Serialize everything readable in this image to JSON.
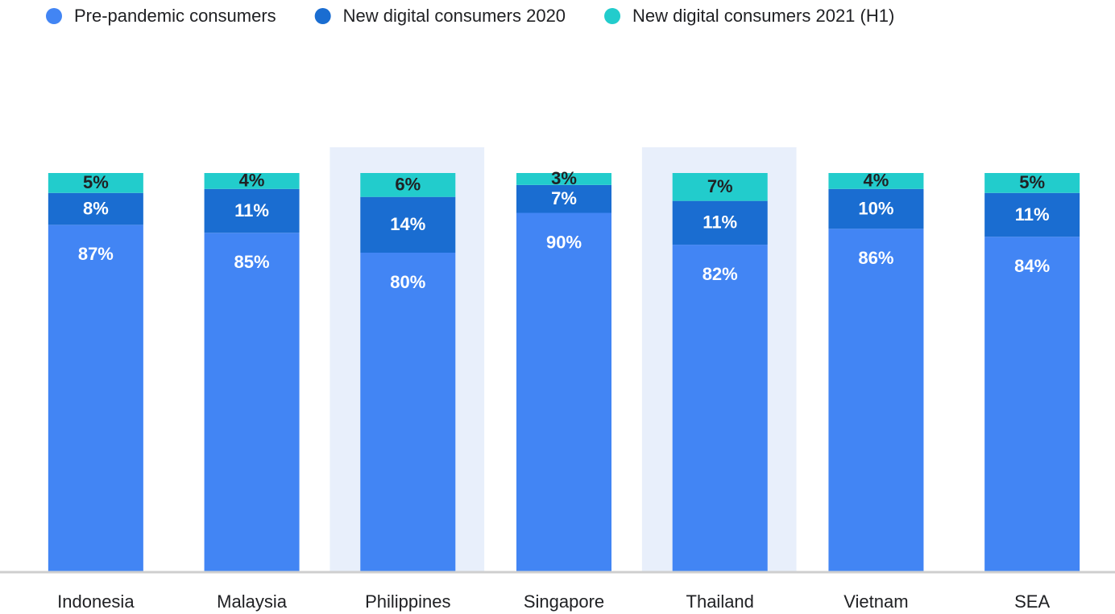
{
  "chart_data": {
    "type": "stacked_bar",
    "categories": [
      "Indonesia",
      "Malaysia",
      "Philippines",
      "Singapore",
      "Thailand",
      "Vietnam",
      "SEA"
    ],
    "series": [
      {
        "name": "Pre-pandemic consumers",
        "color": "#4285f4",
        "label_color": "#ffffff",
        "values": [
          87,
          85,
          80,
          90,
          82,
          86,
          84
        ],
        "value_labels": [
          "87%",
          "85%",
          "80%",
          "90%",
          "82%",
          "86%",
          "84%"
        ]
      },
      {
        "name": "New digital consumers 2020",
        "color": "#1a6dd1",
        "label_color": "#ffffff",
        "values": [
          8,
          11,
          14,
          7,
          11,
          10,
          11
        ],
        "value_labels": [
          "8%",
          "11%",
          "14%",
          "7%",
          "11%",
          "10%",
          "11%"
        ]
      },
      {
        "name": "New digital consumers 2021 (H1)",
        "color": "#22cccc",
        "label_color": "#202124",
        "values": [
          5,
          4,
          6,
          3,
          7,
          4,
          5
        ],
        "value_labels": [
          "5%",
          "4%",
          "6%",
          "3%",
          "7%",
          "4%",
          "5%"
        ]
      }
    ],
    "ylim": [
      0,
      100
    ],
    "legend": "top-left",
    "highlight": [
      2,
      4
    ],
    "highlight_color": "#e8effb"
  }
}
